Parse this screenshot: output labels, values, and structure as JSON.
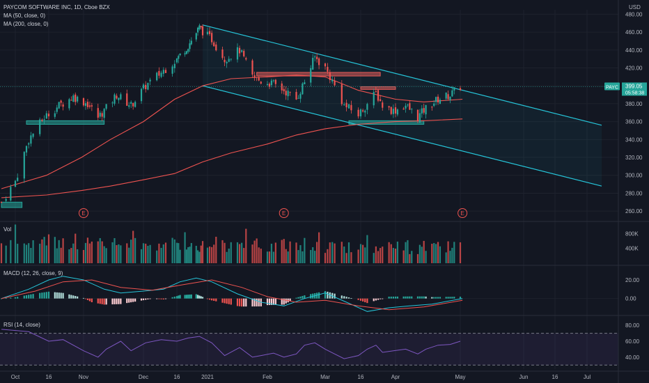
{
  "header": {
    "symbol_line": "PAYCOM SOFTWARE INC, 1D, Cboe BZX",
    "ma50_label": "MA (50, close, 0)",
    "ma200_label": "MA (200, close, 0)",
    "currency": "USD"
  },
  "colors": {
    "background": "#131722",
    "up": "#26a69a",
    "down": "#ef5350",
    "ma50": "#ef5350",
    "ma200": "#ef5350",
    "channel": "#26c6da",
    "macd_line": "#26c6da",
    "signal_line": "#ef5350",
    "rsi_line": "#7e57c2",
    "support_zone": "#26a69a",
    "resistance_zone": "#ef5350",
    "grid": "#1e222d"
  },
  "chart_data": [
    {
      "type": "candlestick",
      "title": "PAYCOM SOFTWARE INC, 1D, Cboe BZX",
      "yunit": "USD",
      "ylim": [
        250,
        485
      ],
      "yticks": [
        "480.00",
        "460.00",
        "440.00",
        "420.00",
        "400.00",
        "380.00",
        "360.00",
        "340.00",
        "320.00",
        "300.00",
        "280.00",
        "260.00"
      ],
      "ytick_values": [
        480,
        460,
        440,
        420,
        400,
        380,
        360,
        340,
        320,
        300,
        280,
        260
      ],
      "xticks": [
        "Oct",
        "16",
        "Nov",
        "Dec",
        "16",
        "2021",
        "Feb",
        "Mar",
        "16",
        "Apr",
        "May",
        "Jun",
        "16",
        "Jul"
      ],
      "xtick_dates": [
        "2020-10-01",
        "2020-10-16",
        "2020-11-02",
        "2020-12-01",
        "2020-12-16",
        "2021-01-04",
        "2021-02-01",
        "2021-03-01",
        "2021-03-16",
        "2021-04-01",
        "2021-05-03",
        "2021-06-01",
        "2021-06-16",
        "2021-07-01"
      ],
      "price_label": "399.05",
      "price_label_countdown": "05:58:38",
      "ticker_badge": "PAYC",
      "earnings_marker": "E",
      "earnings_dates": [
        "2020-11-02",
        "2021-02-09",
        "2021-05-04"
      ],
      "price_path": [
        [
          "2020-09-28",
          270
        ],
        [
          "2020-10-07",
          340
        ],
        [
          "2020-10-14",
          365
        ],
        [
          "2020-10-21",
          378
        ],
        [
          "2020-10-28",
          388
        ],
        [
          "2020-11-04",
          380
        ],
        [
          "2020-11-09",
          365
        ],
        [
          "2020-11-13",
          375
        ],
        [
          "2020-11-18",
          390
        ],
        [
          "2020-11-25",
          378
        ],
        [
          "2020-12-02",
          400
        ],
        [
          "2020-12-09",
          415
        ],
        [
          "2020-12-16",
          430
        ],
        [
          "2020-12-23",
          445
        ],
        [
          "2020-12-30",
          465
        ],
        [
          "2021-01-06",
          452
        ],
        [
          "2021-01-12",
          430
        ],
        [
          "2021-01-19",
          440
        ],
        [
          "2021-01-25",
          410
        ],
        [
          "2021-01-29",
          405
        ],
        [
          "2021-02-04",
          402
        ],
        [
          "2021-02-09",
          395
        ],
        [
          "2021-02-15",
          385
        ],
        [
          "2021-02-19",
          405
        ],
        [
          "2021-02-24",
          432
        ],
        [
          "2021-03-01",
          420
        ],
        [
          "2021-03-05",
          400
        ],
        [
          "2021-03-09",
          378
        ],
        [
          "2021-03-15",
          368
        ],
        [
          "2021-03-19",
          380
        ],
        [
          "2021-03-23",
          392
        ],
        [
          "2021-03-26",
          378
        ],
        [
          "2021-03-31",
          372
        ],
        [
          "2021-04-06",
          378
        ],
        [
          "2021-04-12",
          365
        ],
        [
          "2021-04-16",
          375
        ],
        [
          "2021-04-22",
          385
        ],
        [
          "2021-04-28",
          390
        ],
        [
          "2021-05-03",
          399
        ]
      ],
      "ma50": [
        [
          "2020-09-28",
          285
        ],
        [
          "2020-10-15",
          300
        ],
        [
          "2020-11-01",
          320
        ],
        [
          "2020-11-15",
          340
        ],
        [
          "2020-12-01",
          360
        ],
        [
          "2020-12-15",
          385
        ],
        [
          "2021-01-01",
          400
        ],
        [
          "2021-01-15",
          408
        ],
        [
          "2021-02-01",
          410
        ],
        [
          "2021-02-15",
          412
        ],
        [
          "2021-03-01",
          410
        ],
        [
          "2021-03-15",
          395
        ],
        [
          "2021-04-01",
          385
        ],
        [
          "2021-04-15",
          382
        ],
        [
          "2021-05-04",
          385
        ]
      ],
      "ma200": [
        [
          "2020-09-28",
          275
        ],
        [
          "2020-10-15",
          278
        ],
        [
          "2020-11-01",
          283
        ],
        [
          "2020-11-15",
          288
        ],
        [
          "2020-12-01",
          295
        ],
        [
          "2020-12-15",
          302
        ],
        [
          "2021-01-01",
          315
        ],
        [
          "2021-01-15",
          325
        ],
        [
          "2021-02-01",
          335
        ],
        [
          "2021-02-15",
          345
        ],
        [
          "2021-03-01",
          352
        ],
        [
          "2021-03-15",
          357
        ],
        [
          "2021-04-01",
          360
        ],
        [
          "2021-04-15",
          361
        ],
        [
          "2021-05-04",
          363
        ]
      ],
      "channel_upper": [
        [
          "2021-01-01",
          468
        ],
        [
          "2021-07-08",
          356
        ]
      ],
      "channel_lower": [
        [
          "2021-01-01",
          400
        ],
        [
          "2021-07-08",
          288
        ]
      ],
      "zones": [
        {
          "kind": "support",
          "start": "2020-10-06",
          "end": "2020-11-12",
          "low": 357,
          "high": 361
        },
        {
          "kind": "support",
          "start": "2021-03-11",
          "end": "2021-04-15",
          "low": 357,
          "high": 361
        },
        {
          "kind": "resistance",
          "start": "2021-01-27",
          "end": "2021-03-25",
          "low": 411,
          "high": 415
        },
        {
          "kind": "resistance",
          "start": "2021-03-16",
          "end": "2021-04-01",
          "low": 396,
          "high": 399
        },
        {
          "kind": "support",
          "start": "2020-09-28",
          "end": "2020-10-04",
          "low": 264,
          "high": 270
        }
      ]
    },
    {
      "type": "bar",
      "title": "Vol",
      "yticks": [
        "800K",
        "400K"
      ],
      "ytick_values": [
        800000,
        400000
      ],
      "ylim": [
        0,
        1050000
      ]
    },
    {
      "type": "line",
      "title": "MACD (12, 26, close, 9)",
      "yticks": [
        "20.00",
        "0.00"
      ],
      "ytick_values": [
        20,
        0
      ],
      "ylim": [
        -16,
        32
      ],
      "macd_path": [
        [
          "2020-09-28",
          0
        ],
        [
          "2020-10-07",
          10
        ],
        [
          "2020-10-16",
          20
        ],
        [
          "2020-10-23",
          24
        ],
        [
          "2020-11-02",
          20
        ],
        [
          "2020-11-12",
          10
        ],
        [
          "2020-11-20",
          6
        ],
        [
          "2020-12-01",
          8
        ],
        [
          "2020-12-10",
          10
        ],
        [
          "2020-12-18",
          18
        ],
        [
          "2020-12-28",
          22
        ],
        [
          "2021-01-06",
          18
        ],
        [
          "2021-01-18",
          5
        ],
        [
          "2021-01-29",
          -4
        ],
        [
          "2021-02-09",
          -8
        ],
        [
          "2021-02-19",
          0
        ],
        [
          "2021-03-01",
          6
        ],
        [
          "2021-03-10",
          -4
        ],
        [
          "2021-03-19",
          -14
        ],
        [
          "2021-03-29",
          -10
        ],
        [
          "2021-04-08",
          -8
        ],
        [
          "2021-04-19",
          -6
        ],
        [
          "2021-05-04",
          0
        ]
      ],
      "signal_path": [
        [
          "2020-09-28",
          0
        ],
        [
          "2020-10-10",
          8
        ],
        [
          "2020-10-23",
          18
        ],
        [
          "2020-11-06",
          20
        ],
        [
          "2020-11-20",
          12
        ],
        [
          "2020-12-05",
          9
        ],
        [
          "2020-12-20",
          15
        ],
        [
          "2021-01-06",
          20
        ],
        [
          "2021-01-20",
          12
        ],
        [
          "2021-02-01",
          2
        ],
        [
          "2021-02-15",
          -4
        ],
        [
          "2021-03-01",
          -2
        ],
        [
          "2021-03-15",
          -8
        ],
        [
          "2021-03-29",
          -12
        ],
        [
          "2021-04-15",
          -9
        ],
        [
          "2021-05-04",
          -2
        ]
      ]
    },
    {
      "type": "line",
      "title": "RSI (14, close)",
      "yticks": [
        "80.00",
        "60.00",
        "40.00"
      ],
      "ytick_values": [
        80,
        60,
        40
      ],
      "ylim": [
        25,
        88
      ],
      "upper_band": 70,
      "lower_band": 30,
      "rsi_path": [
        [
          "2020-09-28",
          75
        ],
        [
          "2020-10-07",
          72
        ],
        [
          "2020-10-16",
          60
        ],
        [
          "2020-10-23",
          62
        ],
        [
          "2020-11-02",
          48
        ],
        [
          "2020-11-09",
          40
        ],
        [
          "2020-11-13",
          50
        ],
        [
          "2020-11-20",
          60
        ],
        [
          "2020-11-25",
          48
        ],
        [
          "2020-12-02",
          58
        ],
        [
          "2020-12-09",
          62
        ],
        [
          "2020-12-16",
          60
        ],
        [
          "2020-12-23",
          64
        ],
        [
          "2020-12-30",
          66
        ],
        [
          "2021-01-06",
          58
        ],
        [
          "2021-01-12",
          42
        ],
        [
          "2021-01-19",
          52
        ],
        [
          "2021-01-25",
          40
        ],
        [
          "2021-01-29",
          42
        ],
        [
          "2021-02-04",
          45
        ],
        [
          "2021-02-09",
          40
        ],
        [
          "2021-02-15",
          44
        ],
        [
          "2021-02-19",
          55
        ],
        [
          "2021-02-24",
          58
        ],
        [
          "2021-03-01",
          50
        ],
        [
          "2021-03-05",
          44
        ],
        [
          "2021-03-09",
          38
        ],
        [
          "2021-03-15",
          42
        ],
        [
          "2021-03-19",
          50
        ],
        [
          "2021-03-23",
          55
        ],
        [
          "2021-03-26",
          46
        ],
        [
          "2021-03-31",
          48
        ],
        [
          "2021-04-06",
          50
        ],
        [
          "2021-04-12",
          44
        ],
        [
          "2021-04-16",
          50
        ],
        [
          "2021-04-22",
          55
        ],
        [
          "2021-04-28",
          56
        ],
        [
          "2021-05-03",
          60
        ]
      ]
    }
  ]
}
